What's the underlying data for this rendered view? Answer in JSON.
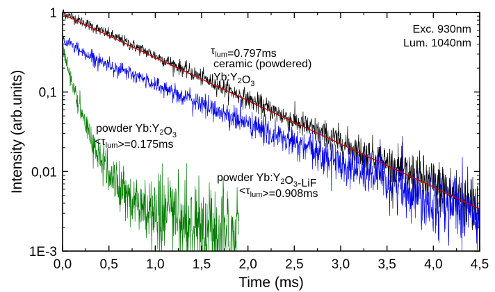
{
  "chart_data": {
    "type": "line",
    "xlabel": "Time (ms)",
    "ylabel": "Intensity (arb.units)",
    "x_scale": "linear",
    "y_scale": "log",
    "xlim": [
      0.0,
      4.5
    ],
    "ylim": [
      0.001,
      1
    ],
    "x_ticks": [
      0.0,
      0.5,
      1.0,
      1.5,
      2.0,
      2.5,
      3.0,
      3.5,
      4.0,
      4.5
    ],
    "x_tick_labels": [
      "0,0",
      "0,5",
      "1,0",
      "1,5",
      "2,0",
      "2,5",
      "3,0",
      "3,5",
      "4,0",
      "4,5"
    ],
    "y_ticks": [
      1,
      0.1,
      0.01,
      0.001
    ],
    "y_tick_labels": [
      "1",
      "0,1",
      "0,01",
      "1E-3"
    ],
    "grid": false,
    "legend": "none",
    "info_box": {
      "lines": [
        "Exc. 930nm",
        "Lum. 1040nm"
      ]
    },
    "annotations": [
      {
        "target": "ceramic",
        "parts": [
          {
            "text": "τ",
            "sub": "lum",
            "after": "=0.797ms"
          },
          {
            "text": "ceramic (powdered)"
          },
          {
            "text": "Yb:Y",
            "sub": "2",
            "mid": "O",
            "sub2": "3",
            "after": ""
          }
        ]
      },
      {
        "target": "powder",
        "parts": [
          {
            "text": "powder Yb:Y",
            "sub": "2",
            "mid": "O",
            "sub2": "3",
            "after": ""
          },
          {
            "text": "<τ",
            "sub": "lum",
            "after": ">=0.175ms"
          }
        ]
      },
      {
        "target": "lif",
        "parts": [
          {
            "text": "powder Yb:Y",
            "sub": "2",
            "mid": "O",
            "sub2": "3",
            "after": "-LiF"
          },
          {
            "text": "<τ",
            "sub": "lum",
            "after": ">=0.908ms"
          }
        ]
      }
    ],
    "series": [
      {
        "id": "ceramic",
        "color": "#000000",
        "x": [
          0.0,
          0.5,
          1.0,
          1.5,
          2.0,
          2.5,
          3.0,
          3.5,
          4.0,
          4.5
        ],
        "y": [
          1.0,
          0.53,
          0.285,
          0.152,
          0.081,
          0.043,
          0.023,
          0.0125,
          0.0067,
          0.0036
        ],
        "noise_floor": 0.0011,
        "x_end": 4.5
      },
      {
        "id": "fit",
        "color": "#cc0000",
        "x": [
          0.0,
          0.5,
          1.0,
          1.5,
          2.0,
          2.5,
          3.0,
          3.5,
          4.0,
          4.5
        ],
        "y": [
          0.95,
          0.51,
          0.27,
          0.145,
          0.078,
          0.0415,
          0.0222,
          0.0119,
          0.0064,
          0.0034
        ]
      },
      {
        "id": "lif",
        "color": "#0000ee",
        "x": [
          0.0,
          0.25,
          0.5,
          1.0,
          1.5,
          2.0,
          2.5,
          3.0,
          3.5,
          4.0,
          4.5
        ],
        "y": [
          0.46,
          0.3,
          0.22,
          0.125,
          0.07,
          0.04,
          0.0225,
          0.0128,
          0.0075,
          0.0045,
          0.0027
        ],
        "noise_floor": 0.0011,
        "x_end": 4.5
      },
      {
        "id": "powder",
        "color": "#007a00",
        "x": [
          0.0,
          0.05,
          0.1,
          0.2,
          0.3,
          0.4,
          0.5,
          0.6,
          0.8,
          1.0,
          1.2,
          1.5,
          1.9
        ],
        "y": [
          0.4,
          0.22,
          0.13,
          0.055,
          0.027,
          0.015,
          0.0095,
          0.0065,
          0.0038,
          0.0027,
          0.0021,
          0.0017,
          0.0016
        ],
        "noise_floor": 0.0012,
        "x_end": 1.9
      }
    ]
  }
}
